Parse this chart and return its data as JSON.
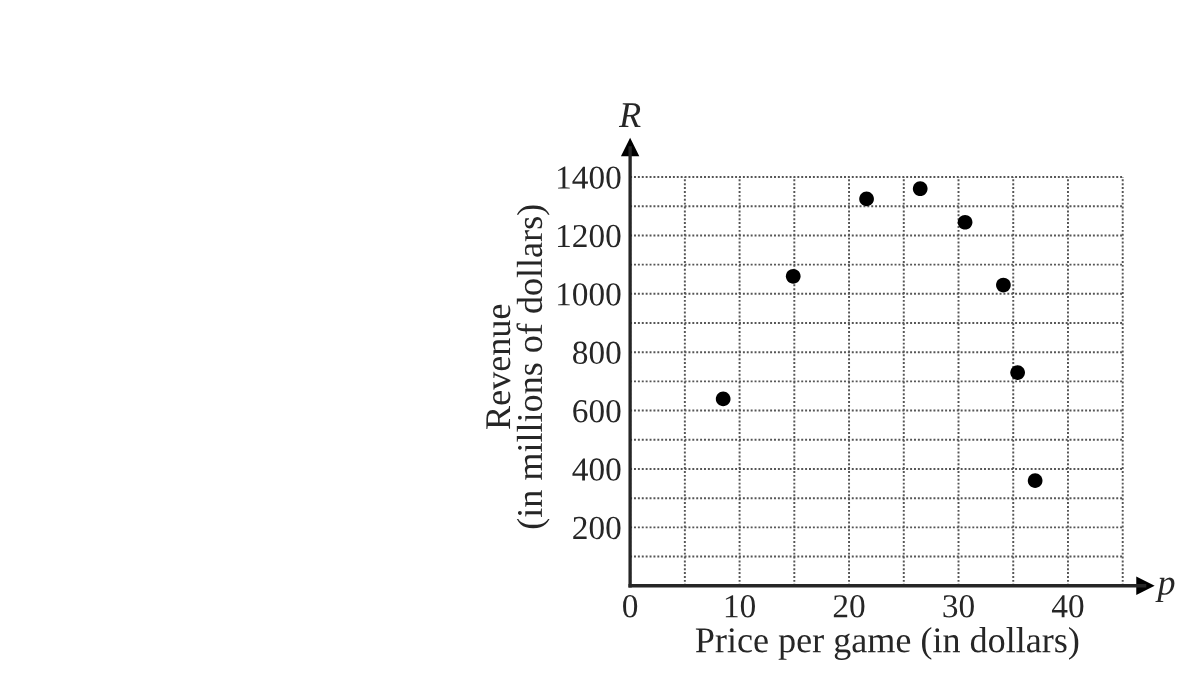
{
  "chart_data": {
    "type": "scatter",
    "xlabel": "Price per game (in dollars)",
    "ylabel": "Revenue\n(in millions of dollars)",
    "annotations": [
      "R",
      "p"
    ],
    "x": [
      8.5,
      14.9,
      21.6,
      26.5,
      30.6,
      34.1,
      35.4,
      37.0
    ],
    "series": [
      {
        "color": "#000000",
        "values": [
          640,
          1060,
          1325,
          1360,
          1245,
          1030,
          730,
          360
        ]
      }
    ],
    "marker": "circle",
    "grid": true,
    "xlim": [
      0,
      47
    ],
    "ylim": [
      0,
      1500
    ],
    "xticks": [
      {
        "value": 0,
        "label": "0"
      },
      {
        "value": 5,
        "label": null
      },
      10,
      {
        "value": 15,
        "label": null
      },
      20,
      {
        "value": 25,
        "label": null
      },
      30,
      {
        "value": 35,
        "label": null
      },
      40,
      {
        "value": 45,
        "label": null
      }
    ],
    "yticks": [
      {
        "value": 0,
        "label": null
      },
      {
        "value": 100,
        "label": null
      },
      200,
      {
        "value": 300,
        "label": null
      },
      400,
      {
        "value": 500,
        "label": null
      },
      600,
      {
        "value": 700,
        "label": null
      },
      800,
      {
        "value": 900,
        "label": null
      },
      1000,
      {
        "value": 1100,
        "label": null
      },
      1200,
      {
        "value": 1300,
        "label": null
      },
      1400
    ]
  }
}
